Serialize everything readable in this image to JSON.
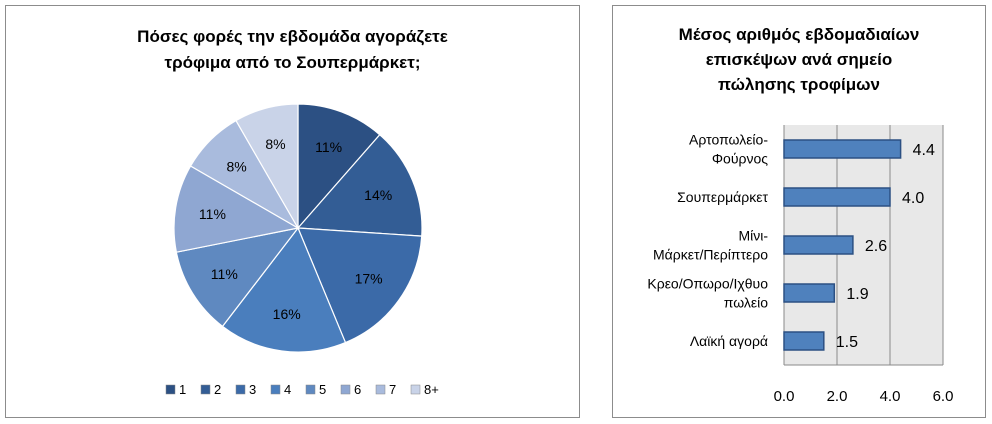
{
  "chart_data": [
    {
      "type": "pie",
      "title_lines": [
        "Πόσες φορές την εβδομάδα αγοράζετε",
        "τρόφιμα από το Σουπερμάρκετ;"
      ],
      "categories": [
        "1",
        "2",
        "3",
        "4",
        "5",
        "6",
        "7",
        "8+"
      ],
      "values": [
        11,
        14,
        17,
        16,
        11,
        11,
        8,
        8
      ],
      "labels": [
        "11%",
        "14%",
        "17%",
        "16%",
        "11%",
        "11%",
        "8%",
        "8%"
      ],
      "legend_position": "bottom"
    },
    {
      "type": "bar",
      "orientation": "horizontal",
      "title_lines": [
        "Μέσος αριθμός εβδομαδιαίων",
        "επισκέψων ανά σημείο",
        "πώλησης τροφίμων"
      ],
      "categories": [
        [
          "Αρτοπωλείο-",
          "Φούρνος"
        ],
        [
          "Σουπερμάρκετ"
        ],
        [
          "Μίνι-",
          "Μάρκετ/Περίπτερο"
        ],
        [
          "Κρεο/Οπωρο/Ιχθυο",
          "πωλείο"
        ],
        [
          "Λαϊκή αγορά"
        ]
      ],
      "values": [
        4.4,
        4.0,
        2.6,
        1.9,
        1.5
      ],
      "value_labels": [
        "4.4",
        "4.0",
        "2.6",
        "1.9",
        "1.5"
      ],
      "xlim": [
        0,
        6
      ],
      "x_ticks": [
        "0.0",
        "2.0",
        "4.0",
        "6.0"
      ],
      "grid": true
    }
  ],
  "colors": {
    "pie": [
      "#2c5083",
      "#335d95",
      "#3b6aa8",
      "#4a7ebd",
      "#5f89c0",
      "#8fa7d2",
      "#a9bbdd",
      "#c9d3e8"
    ],
    "bar_fill": "#4f81bd",
    "bar_stroke": "#2c5083",
    "plot_bg": "#e8e8e8"
  }
}
